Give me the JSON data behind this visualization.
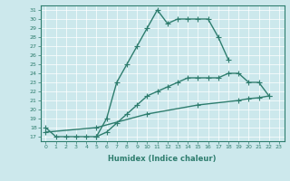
{
  "line1_x": [
    0,
    1,
    2,
    3,
    4,
    5,
    6,
    7,
    8,
    9,
    10,
    11,
    12,
    13,
    14,
    15,
    16,
    17,
    18
  ],
  "line1_y": [
    18,
    17,
    17,
    17,
    17,
    17,
    19,
    23,
    25,
    27,
    29,
    31,
    29.5,
    30,
    30,
    30,
    30,
    28,
    25.5
  ],
  "line2_x": [
    5,
    6,
    7,
    8,
    9,
    10,
    11,
    12,
    13,
    14,
    15,
    16,
    17,
    18,
    19,
    20,
    21,
    22
  ],
  "line2_y": [
    17,
    17.5,
    18.5,
    19.5,
    20.5,
    21.5,
    22,
    22.5,
    23,
    23.5,
    23.5,
    23.5,
    23.5,
    24,
    24,
    23,
    23,
    21.5
  ],
  "line3_x": [
    0,
    5,
    10,
    15,
    19,
    20,
    21,
    22
  ],
  "line3_y": [
    17.5,
    18,
    19.5,
    20.5,
    21.0,
    21.2,
    21.3,
    21.5
  ],
  "color": "#2e7d6e",
  "bg_color": "#cce8ec",
  "xlabel": "Humidex (Indice chaleur)",
  "xlim": [
    -0.5,
    23.5
  ],
  "ylim": [
    16.5,
    31.5
  ],
  "yticks": [
    17,
    18,
    19,
    20,
    21,
    22,
    23,
    24,
    25,
    26,
    27,
    28,
    29,
    30,
    31
  ],
  "xticks": [
    0,
    1,
    2,
    3,
    4,
    5,
    6,
    7,
    8,
    9,
    10,
    11,
    12,
    13,
    14,
    15,
    16,
    17,
    18,
    19,
    20,
    21,
    22,
    23
  ],
  "marker": "+",
  "linewidth": 1.0,
  "markersize": 4
}
